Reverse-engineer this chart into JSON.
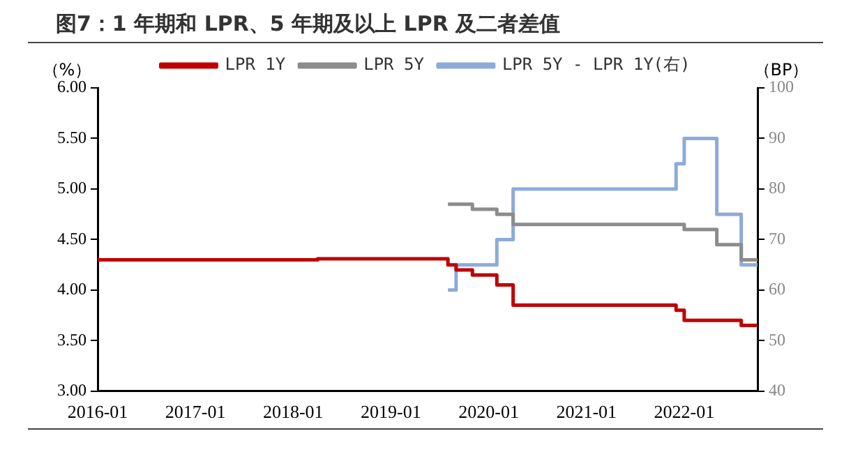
{
  "chart_data": {
    "type": "step",
    "title": "图7：1 年期和 LPR、5 年期及以上 LPR 及二者差值",
    "ylabel": "（%）",
    "y2label": "（BP）",
    "xlim": [
      "2016-01",
      "2022-10"
    ],
    "xticks": [
      "2016-01",
      "2017-01",
      "2018-01",
      "2019-01",
      "2020-01",
      "2021-01",
      "2022-01"
    ],
    "ylim": [
      3,
      6
    ],
    "yticks": [
      {
        "value": 3,
        "label": "3.00"
      },
      {
        "value": 3.5,
        "label": "3.50"
      },
      {
        "value": 4,
        "label": "4.00"
      },
      {
        "value": 4.5,
        "label": "4.50"
      },
      {
        "value": 5,
        "label": "5.00"
      },
      {
        "value": 5.5,
        "label": "5.50"
      },
      {
        "value": 6,
        "label": "6.00"
      }
    ],
    "y2lim": [
      40,
      100
    ],
    "y2ticks": [
      40,
      50,
      60,
      70,
      80,
      90,
      100
    ],
    "grid": false,
    "legend": "top",
    "marker": "none",
    "series": [
      {
        "name": "LPR 1Y",
        "color": "#c00000",
        "x": [
          "2016-01",
          "2018-04",
          "2019-08",
          "2019-09",
          "2019-11",
          "2020-02",
          "2020-04",
          "2021-12",
          "2022-01",
          "2022-08",
          "2022-10"
        ],
        "values": [
          4.3,
          4.31,
          4.25,
          4.2,
          4.15,
          4.05,
          3.85,
          3.8,
          3.7,
          3.65,
          3.65
        ]
      },
      {
        "name": "LPR 5Y",
        "color": "#8c8c8c",
        "x": [
          "2019-08",
          "2019-11",
          "2020-02",
          "2020-04",
          "2022-01",
          "2022-05",
          "2022-08",
          "2022-10"
        ],
        "values": [
          4.85,
          4.8,
          4.75,
          4.65,
          4.6,
          4.45,
          4.3,
          4.3
        ]
      },
      {
        "name": "LPR 5Y - LPR 1Y(右)",
        "color": "#8eaadb",
        "axis": "y2",
        "x": [
          "2019-08",
          "2019-09",
          "2020-02",
          "2020-04",
          "2021-12",
          "2022-01",
          "2022-05",
          "2022-08",
          "2022-10"
        ],
        "values": [
          60,
          65,
          70,
          80,
          85,
          90,
          75,
          65,
          65
        ]
      }
    ]
  }
}
